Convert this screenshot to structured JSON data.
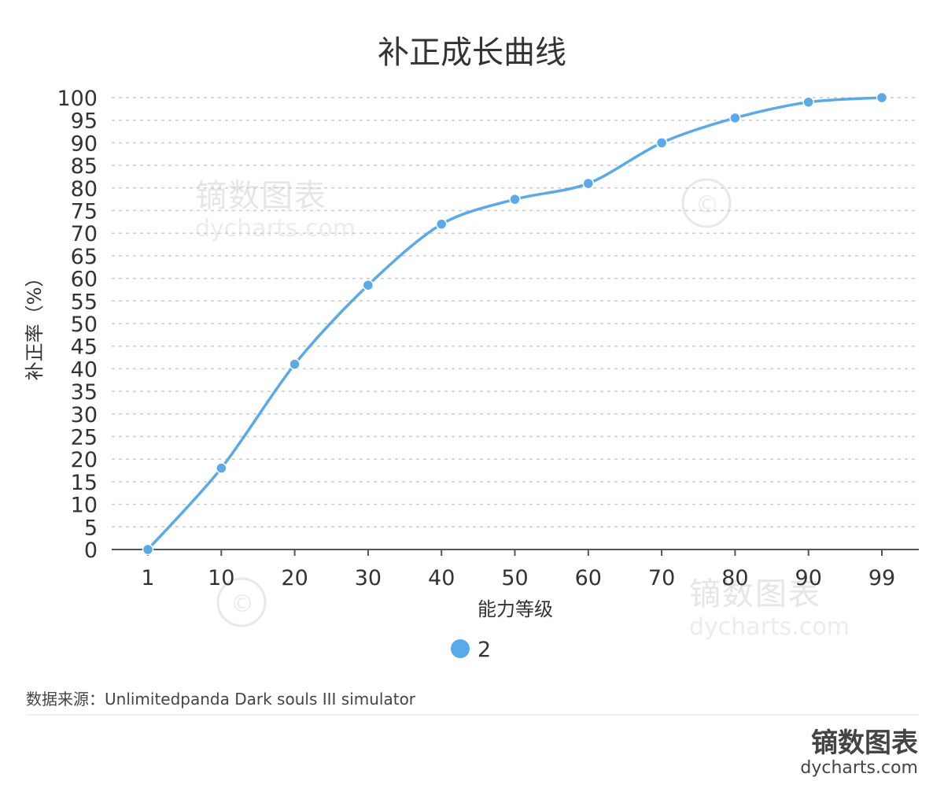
{
  "chart_data": {
    "type": "line",
    "title": "补正成长曲线",
    "xlabel": "能力等级",
    "ylabel": "补正率（%）",
    "categories": [
      "1",
      "10",
      "20",
      "30",
      "40",
      "50",
      "60",
      "70",
      "80",
      "90",
      "99"
    ],
    "series": [
      {
        "name": "2",
        "values": [
          0,
          18,
          41,
          58.5,
          72,
          77.5,
          81,
          90,
          95.5,
          99,
          100
        ]
      }
    ],
    "y_ticks": [
      "0",
      "5",
      "10",
      "15",
      "20",
      "25",
      "30",
      "35",
      "40",
      "45",
      "50",
      "55",
      "60",
      "65",
      "70",
      "75",
      "80",
      "85",
      "90",
      "95",
      "100"
    ],
    "ylim": [
      0,
      100
    ],
    "grid": "horizontal dashed",
    "legend": "bottom",
    "line_color": "#5aa9e9",
    "grid_color": "#cccccc",
    "axis_color": "#555555"
  },
  "source_text": "数据来源：Unlimitedpanda Dark souls III simulator",
  "watermark": {
    "cn": "镝数图表",
    "en": "dycharts.com",
    "copyright": "©"
  },
  "brand": {
    "cn": "镝数图表",
    "en": "dycharts.com"
  }
}
